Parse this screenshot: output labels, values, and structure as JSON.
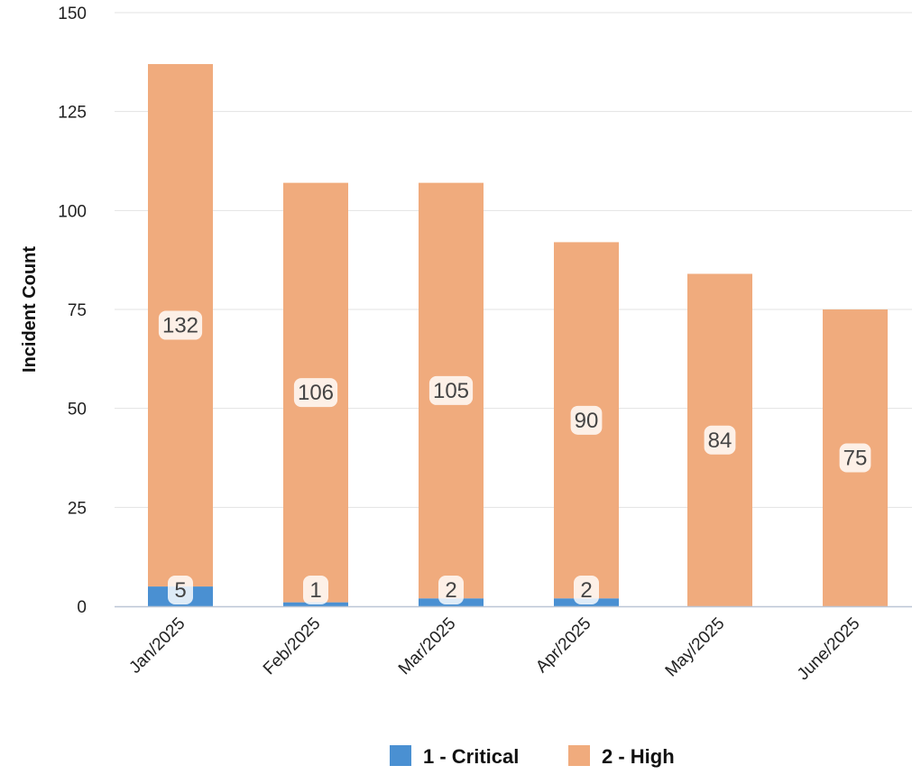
{
  "chart_data": {
    "type": "bar",
    "stacked": true,
    "categories": [
      "Jan/2025",
      "Feb/2025",
      "Mar/2025",
      "Apr/2025",
      "May/2025",
      "June/2025"
    ],
    "series": [
      {
        "name": "1 - Critical",
        "color": "#4a90d2",
        "values": [
          5,
          1,
          2,
          2,
          0,
          0
        ],
        "labels": [
          "5",
          "1",
          "2",
          "2",
          "",
          ""
        ]
      },
      {
        "name": "2 - High",
        "color": "#f0ab7d",
        "values": [
          132,
          106,
          105,
          90,
          84,
          75
        ],
        "labels": [
          "132",
          "106",
          "105",
          "90",
          "84",
          "75"
        ]
      }
    ],
    "ylabel": "Incident Count",
    "xlabel": "",
    "ylim": [
      0,
      150
    ],
    "yticks": [
      "0",
      "25",
      "50",
      "75",
      "100",
      "125",
      "150"
    ],
    "grid": true,
    "legend_position": "bottom"
  }
}
